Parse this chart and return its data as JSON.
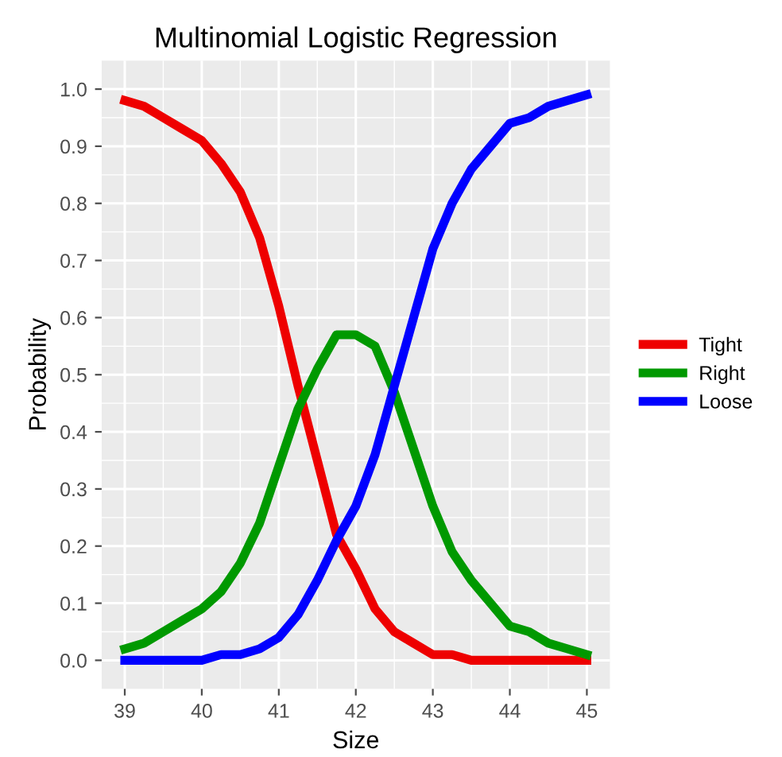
{
  "chart_data": {
    "type": "line",
    "title": "Multinomial Logistic Regression",
    "xlabel": "Size",
    "ylabel": "Probability",
    "x": [
      39,
      39.25,
      39.5,
      39.75,
      40,
      40.25,
      40.5,
      40.75,
      41,
      41.25,
      41.5,
      41.75,
      42,
      42.25,
      42.5,
      42.75,
      43,
      43.25,
      43.5,
      43.75,
      44,
      44.25,
      44.5,
      44.75,
      45
    ],
    "series": [
      {
        "name": "Tight",
        "color": "#ee0000",
        "values": [
          0.98,
          0.97,
          0.95,
          0.93,
          0.91,
          0.87,
          0.82,
          0.74,
          0.62,
          0.48,
          0.35,
          0.22,
          0.16,
          0.09,
          0.05,
          0.03,
          0.01,
          0.01,
          0,
          0,
          0,
          0,
          0,
          0,
          0
        ]
      },
      {
        "name": "Right",
        "color": "#009900",
        "values": [
          0.02,
          0.03,
          0.05,
          0.07,
          0.09,
          0.12,
          0.17,
          0.24,
          0.34,
          0.44,
          0.51,
          0.57,
          0.57,
          0.55,
          0.47,
          0.37,
          0.27,
          0.19,
          0.14,
          0.1,
          0.06,
          0.05,
          0.03,
          0.02,
          0.01
        ]
      },
      {
        "name": "Loose",
        "color": "#0000ff",
        "values": [
          0,
          0,
          0,
          0,
          0,
          0.01,
          0.01,
          0.02,
          0.04,
          0.08,
          0.14,
          0.21,
          0.27,
          0.36,
          0.48,
          0.6,
          0.72,
          0.8,
          0.86,
          0.9,
          0.94,
          0.95,
          0.97,
          0.98,
          0.99
        ]
      }
    ],
    "xlim": [
      38.7,
      45.3
    ],
    "xticks": [
      39,
      40,
      41,
      42,
      43,
      44,
      45
    ],
    "ylim": [
      -0.05,
      1.05
    ],
    "yticks": [
      {
        "value": 0,
        "label": "0.0"
      },
      0.1,
      0.2,
      0.3,
      0.4,
      0.5,
      0.6,
      0.7,
      0.8,
      0.9,
      {
        "value": 1,
        "label": "1.0"
      }
    ],
    "grid": true,
    "legend": "right",
    "line_style": "solid",
    "marker": "none"
  }
}
